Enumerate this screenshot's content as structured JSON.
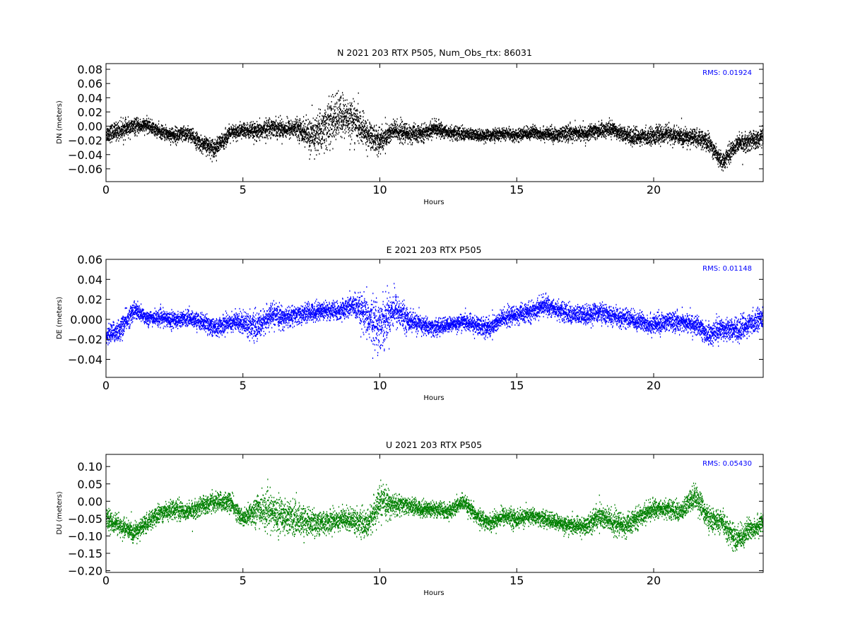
{
  "chart_data": [
    {
      "type": "scatter",
      "title": "N 2021 203 RTX  P505, Num_Obs_rtx: 86031",
      "xlabel": "Hours",
      "ylabel": "DN (meters)",
      "xlim": [
        0,
        24
      ],
      "ylim": [
        -0.078,
        0.088
      ],
      "xticks": [
        0,
        5,
        10,
        15,
        20
      ],
      "yticks": [
        -0.06,
        -0.04,
        -0.02,
        0.0,
        0.02,
        0.04,
        0.06,
        0.08
      ],
      "ytick_labels": [
        "−0.06",
        "−0.04",
        "−0.02",
        "0.00",
        "0.02",
        "0.04",
        "0.06",
        "0.08"
      ],
      "xtick_labels": [
        "0",
        "5",
        "10",
        "15",
        "20"
      ],
      "color": "#000000",
      "annotation": "RMS:  0.01924",
      "series": [
        {
          "x": [
            0.0,
            0.5,
            1.0,
            1.5,
            2.0,
            2.5,
            3.0,
            3.5,
            4.0,
            4.5,
            5.0,
            5.5,
            6.0,
            6.5,
            7.0,
            7.5,
            8.0,
            8.5,
            9.0,
            9.5,
            10.0,
            10.5,
            11.0,
            11.5,
            12.0,
            12.5,
            13.0,
            13.5,
            14.0,
            14.5,
            15.0,
            15.5,
            16.0,
            16.5,
            17.0,
            17.5,
            18.0,
            18.5,
            19.0,
            19.5,
            20.0,
            20.5,
            21.0,
            21.5,
            22.0,
            22.5,
            23.0,
            23.5,
            24.0
          ],
          "y": [
            -0.01,
            -0.005,
            0.0,
            0.002,
            -0.008,
            -0.012,
            -0.01,
            -0.025,
            -0.03,
            -0.01,
            -0.005,
            -0.008,
            0.0,
            -0.003,
            -0.002,
            -0.015,
            0.0,
            0.015,
            0.01,
            -0.01,
            -0.02,
            -0.005,
            -0.01,
            -0.01,
            -0.002,
            -0.008,
            -0.01,
            -0.012,
            -0.012,
            -0.01,
            -0.012,
            -0.008,
            -0.01,
            -0.012,
            -0.008,
            -0.01,
            -0.005,
            -0.003,
            -0.012,
            -0.015,
            -0.012,
            -0.01,
            -0.015,
            -0.015,
            -0.022,
            -0.05,
            -0.025,
            -0.02,
            -0.015
          ],
          "spread": [
            0.012,
            0.014,
            0.012,
            0.01,
            0.01,
            0.012,
            0.012,
            0.012,
            0.014,
            0.012,
            0.012,
            0.013,
            0.014,
            0.014,
            0.014,
            0.028,
            0.035,
            0.035,
            0.03,
            0.022,
            0.02,
            0.016,
            0.015,
            0.012,
            0.012,
            0.01,
            0.01,
            0.009,
            0.009,
            0.009,
            0.009,
            0.01,
            0.01,
            0.011,
            0.012,
            0.011,
            0.012,
            0.011,
            0.012,
            0.012,
            0.013,
            0.013,
            0.014,
            0.013,
            0.014,
            0.012,
            0.014,
            0.014,
            0.013
          ]
        }
      ]
    },
    {
      "type": "scatter",
      "title": "E 2021 203 RTX  P505",
      "xlabel": "Hours",
      "ylabel": "DE (meters)",
      "xlim": [
        0,
        24
      ],
      "ylim": [
        -0.058,
        0.06
      ],
      "xticks": [
        0,
        5,
        10,
        15,
        20
      ],
      "yticks": [
        -0.04,
        -0.02,
        0.0,
        0.02,
        0.04,
        0.06
      ],
      "ytick_labels": [
        "−0.04",
        "−0.02",
        "0.000",
        "0.02",
        "0.04",
        "0.06"
      ],
      "xtick_labels": [
        "0",
        "5",
        "10",
        "15",
        "20"
      ],
      "color": "#0000ff",
      "annotation": "RMS:  0.01148",
      "series": [
        {
          "x": [
            0.0,
            0.5,
            1.0,
            1.5,
            2.0,
            2.5,
            3.0,
            3.5,
            4.0,
            4.5,
            5.0,
            5.5,
            6.0,
            6.5,
            7.0,
            7.5,
            8.0,
            8.5,
            9.0,
            9.5,
            10.0,
            10.5,
            11.0,
            11.5,
            12.0,
            12.5,
            13.0,
            13.5,
            14.0,
            14.5,
            15.0,
            15.5,
            16.0,
            16.5,
            17.0,
            17.5,
            18.0,
            18.5,
            19.0,
            19.5,
            20.0,
            20.5,
            21.0,
            21.5,
            22.0,
            22.5,
            23.0,
            23.5,
            24.0
          ],
          "y": [
            -0.015,
            -0.01,
            0.01,
            0.002,
            0.002,
            0.0,
            0.002,
            -0.002,
            -0.008,
            -0.002,
            -0.002,
            -0.008,
            0.005,
            0.002,
            0.005,
            0.008,
            0.01,
            0.008,
            0.015,
            0.002,
            -0.005,
            0.012,
            0.0,
            -0.005,
            -0.008,
            -0.005,
            -0.002,
            -0.005,
            -0.008,
            0.002,
            0.005,
            0.008,
            0.015,
            0.01,
            0.005,
            0.005,
            0.008,
            0.003,
            0.002,
            -0.002,
            -0.005,
            -0.002,
            -0.002,
            -0.005,
            -0.015,
            -0.008,
            -0.01,
            -0.005,
            0.005
          ],
          "spread": [
            0.01,
            0.012,
            0.01,
            0.008,
            0.008,
            0.009,
            0.008,
            0.009,
            0.01,
            0.01,
            0.012,
            0.014,
            0.012,
            0.011,
            0.01,
            0.01,
            0.01,
            0.01,
            0.012,
            0.022,
            0.028,
            0.02,
            0.012,
            0.01,
            0.009,
            0.008,
            0.008,
            0.01,
            0.011,
            0.01,
            0.01,
            0.01,
            0.01,
            0.01,
            0.01,
            0.011,
            0.01,
            0.01,
            0.01,
            0.01,
            0.011,
            0.01,
            0.01,
            0.01,
            0.012,
            0.012,
            0.012,
            0.012,
            0.011
          ]
        }
      ]
    },
    {
      "type": "scatter",
      "title": "U 2021 203 RTX  P505",
      "xlabel": "Hours",
      "ylabel": "DU (meters)",
      "xlim": [
        0,
        24
      ],
      "ylim": [
        -0.205,
        0.135
      ],
      "xticks": [
        0,
        5,
        10,
        15,
        20
      ],
      "yticks": [
        -0.2,
        -0.15,
        -0.1,
        -0.05,
        0.0,
        0.05,
        0.1
      ],
      "ytick_labels": [
        "−0.20",
        "−0.15",
        "−0.10",
        "−0.05",
        "0.00",
        "0.05",
        "0.10"
      ],
      "xtick_labels": [
        "0",
        "5",
        "10",
        "15",
        "20"
      ],
      "color": "#008000",
      "annotation": "RMS:  0.05430",
      "series": [
        {
          "x": [
            0.0,
            0.5,
            1.0,
            1.5,
            2.0,
            2.5,
            3.0,
            3.5,
            4.0,
            4.5,
            5.0,
            5.5,
            6.0,
            6.5,
            7.0,
            7.5,
            8.0,
            8.5,
            9.0,
            9.5,
            10.0,
            10.5,
            11.0,
            11.5,
            12.0,
            12.5,
            13.0,
            13.5,
            14.0,
            14.5,
            15.0,
            15.5,
            16.0,
            16.5,
            17.0,
            17.5,
            18.0,
            18.5,
            19.0,
            19.5,
            20.0,
            20.5,
            21.0,
            21.5,
            22.0,
            22.5,
            23.0,
            23.5,
            24.0
          ],
          "y": [
            -0.05,
            -0.07,
            -0.09,
            -0.06,
            -0.03,
            -0.02,
            -0.03,
            -0.01,
            0.0,
            0.0,
            -0.05,
            -0.02,
            -0.03,
            -0.04,
            -0.05,
            -0.06,
            -0.06,
            -0.05,
            -0.05,
            -0.07,
            0.0,
            -0.01,
            -0.01,
            -0.02,
            -0.02,
            -0.03,
            0.0,
            -0.04,
            -0.06,
            -0.04,
            -0.05,
            -0.04,
            -0.05,
            -0.06,
            -0.07,
            -0.07,
            -0.04,
            -0.06,
            -0.07,
            -0.04,
            -0.02,
            -0.02,
            -0.03,
            0.02,
            -0.05,
            -0.06,
            -0.11,
            -0.08,
            -0.06
          ],
          "spread": [
            0.03,
            0.03,
            0.03,
            0.028,
            0.028,
            0.028,
            0.028,
            0.028,
            0.03,
            0.03,
            0.025,
            0.05,
            0.055,
            0.055,
            0.05,
            0.04,
            0.035,
            0.035,
            0.035,
            0.04,
            0.05,
            0.035,
            0.025,
            0.025,
            0.025,
            0.025,
            0.025,
            0.025,
            0.025,
            0.028,
            0.028,
            0.025,
            0.025,
            0.025,
            0.025,
            0.028,
            0.04,
            0.04,
            0.035,
            0.03,
            0.028,
            0.028,
            0.03,
            0.04,
            0.035,
            0.035,
            0.04,
            0.035,
            0.03
          ]
        }
      ]
    }
  ]
}
